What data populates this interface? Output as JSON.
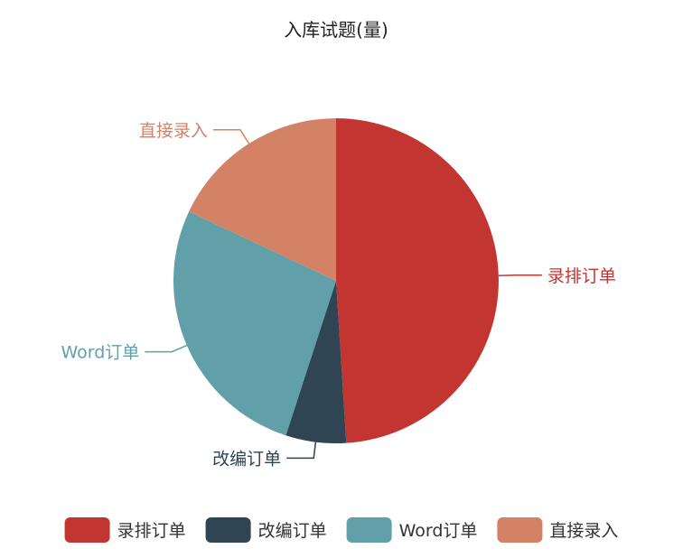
{
  "chart_data": {
    "type": "pie",
    "title": "入库试题(量)",
    "categories": [
      "录排订单",
      "改编订单",
      "Word订单",
      "直接录入"
    ],
    "values": [
      49,
      6,
      27,
      18
    ],
    "colors": [
      "#c23531",
      "#2f4554",
      "#61a0a8",
      "#d48265"
    ],
    "start_angle_deg": 90,
    "clockwise": true,
    "legend": {
      "position": "bottom",
      "items": [
        "录排订单",
        "改编订单",
        "Word订单",
        "直接录入"
      ]
    }
  }
}
